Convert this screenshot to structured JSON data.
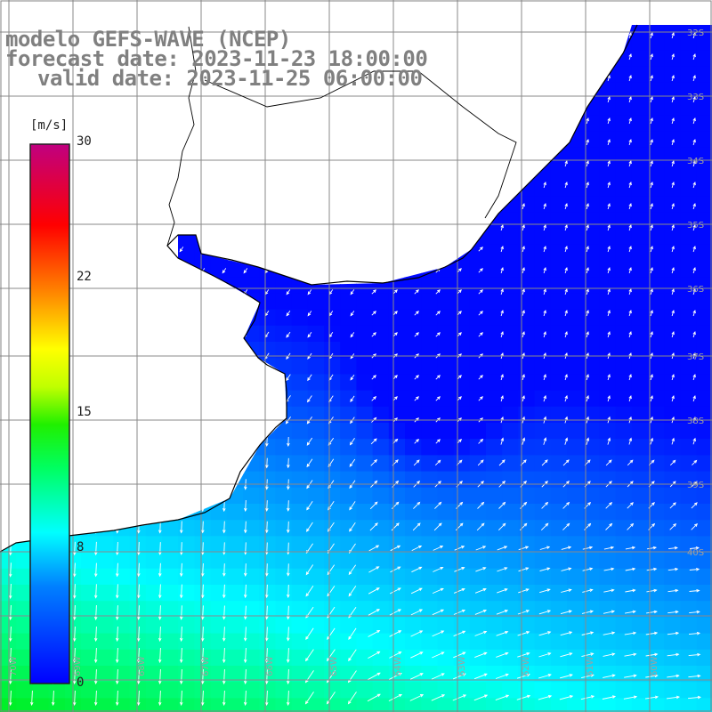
{
  "title": {
    "line1": "modelo GEFS-WAVE (NCEP)",
    "line2": "forecast date: 2023-11-23 18:00:00",
    "line3": "valid date: 2023-11-25 06:00:00"
  },
  "colorbar": {
    "unit": "[m/s]",
    "ticks": [
      "30",
      "22",
      "15",
      "8",
      "0"
    ],
    "tick_values": [
      30,
      22,
      15,
      8,
      0
    ],
    "colors": [
      "#0000ff",
      "#00a0ff",
      "#00ffff",
      "#00ff00",
      "#80ff00",
      "#ffff00",
      "#ff8000",
      "#ff0000",
      "#ff0080",
      "#c00080"
    ]
  },
  "map": {
    "variable": "wind speed",
    "land_color": "#ffffff",
    "grid_color": "#808080",
    "lon_labels": [
      "70W",
      "69W",
      "68W",
      "67W",
      "66W",
      "65W",
      "64W",
      "63W",
      "62W",
      "61W",
      "60W"
    ],
    "lat_labels": [
      "32S",
      "33S",
      "34S",
      "35S",
      "36S",
      "37S",
      "38S",
      "39S",
      "40S"
    ]
  }
}
